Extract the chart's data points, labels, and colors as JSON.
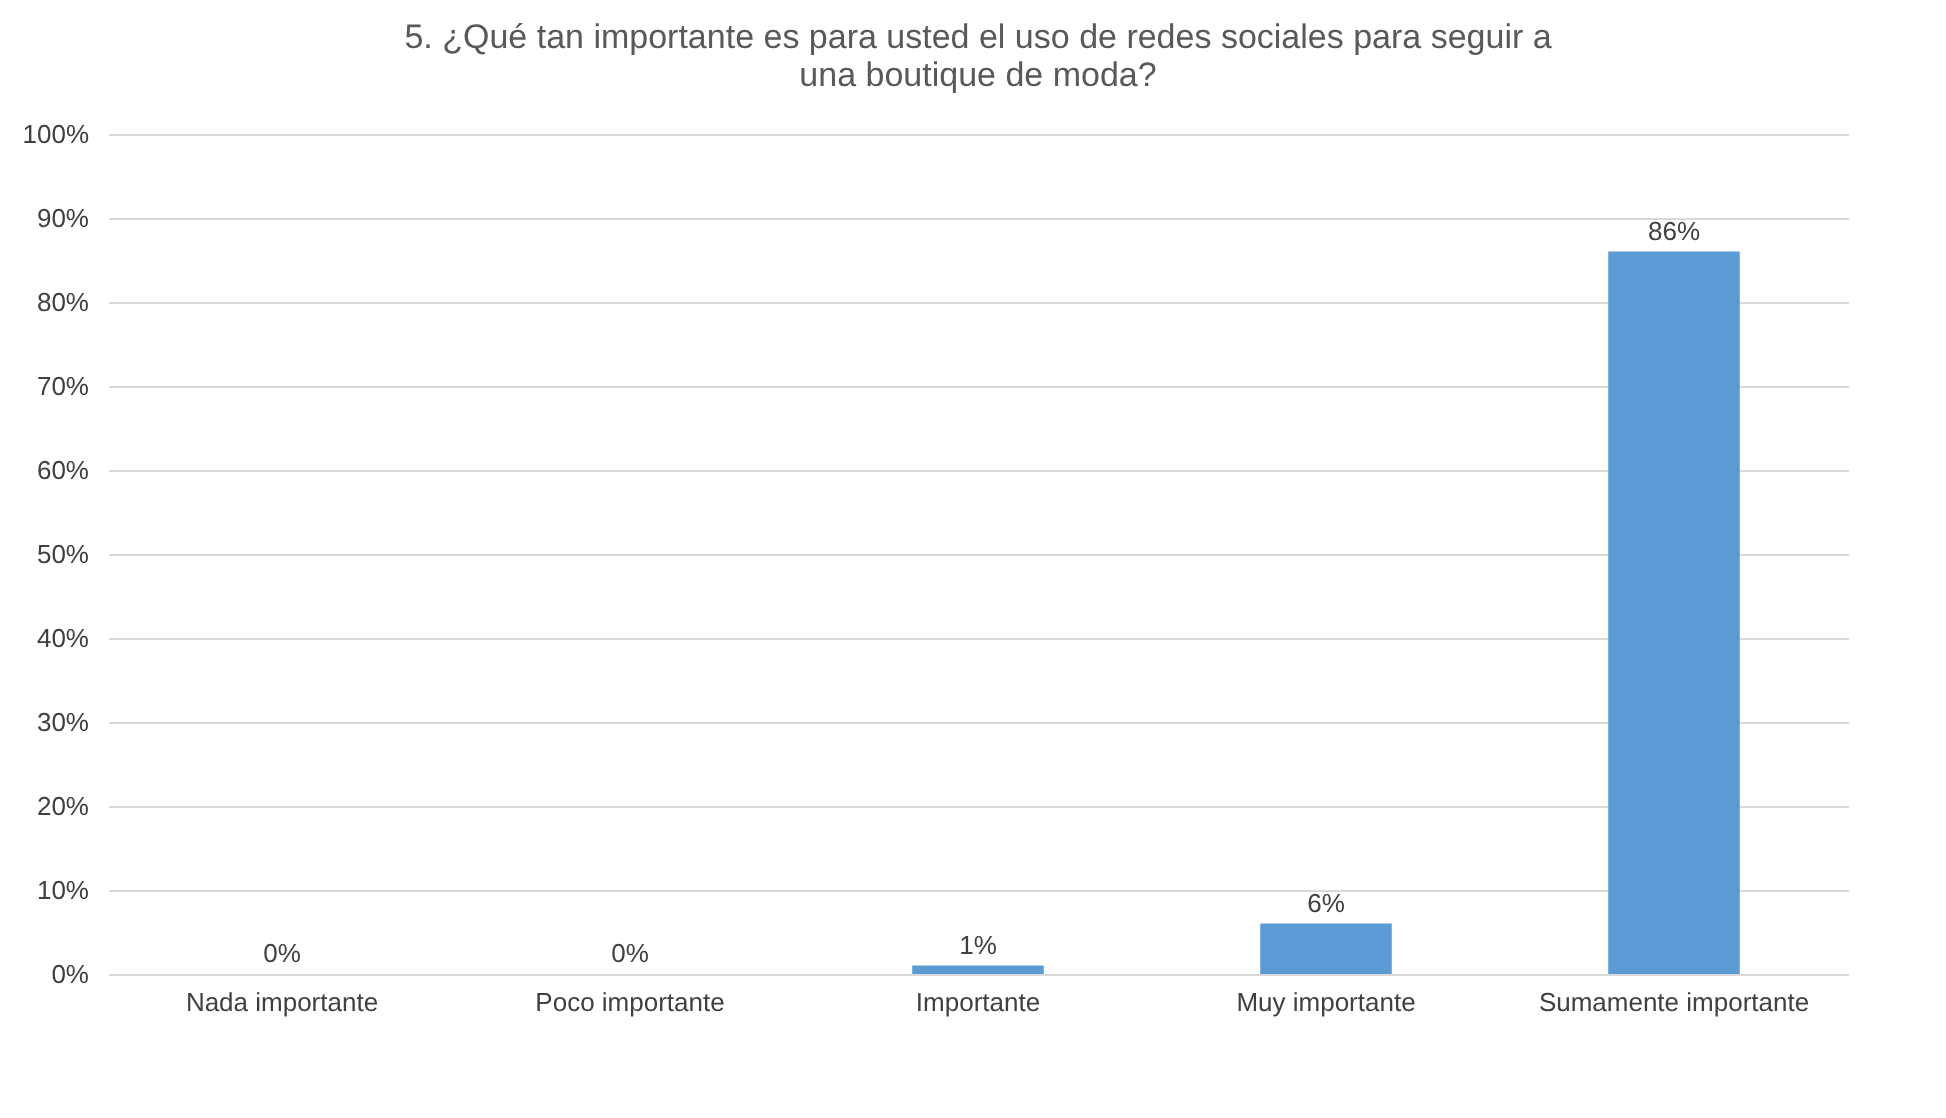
{
  "chart_data": {
    "type": "bar",
    "title": "5.    ¿Qué tan importante es para usted el uso de redes sociales para seguir a una boutique de moda?",
    "categories": [
      "Nada importante",
      "Poco importante",
      "Importante",
      "Muy importante",
      "Sumamente importante"
    ],
    "values": [
      0,
      0,
      1,
      6,
      86
    ],
    "value_labels": [
      "0%",
      "0%",
      "1%",
      "6%",
      "86%"
    ],
    "color": "#5b9bd5",
    "ylim": [
      0,
      100
    ],
    "yticks": [
      {
        "value": 0,
        "label": "0%"
      },
      {
        "value": 10,
        "label": "10%"
      },
      {
        "value": 20,
        "label": "20%"
      },
      {
        "value": 30,
        "label": "30%"
      },
      {
        "value": 40,
        "label": "40%"
      },
      {
        "value": 50,
        "label": "50%"
      },
      {
        "value": 60,
        "label": "60%"
      },
      {
        "value": 70,
        "label": "70%"
      },
      {
        "value": 80,
        "label": "80%"
      },
      {
        "value": 90,
        "label": "90%"
      },
      {
        "value": 100,
        "label": "100%"
      }
    ],
    "grid": "y"
  }
}
